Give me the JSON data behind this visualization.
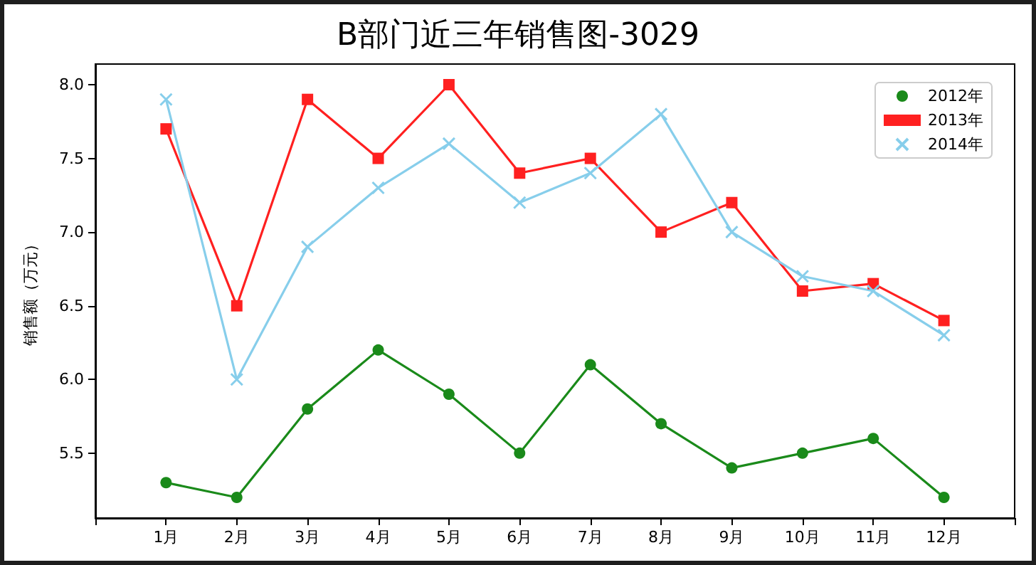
{
  "chart_data": {
    "type": "line",
    "title": "B部门近三年销售图-3029",
    "ylabel": "销售额（万元）",
    "categories": [
      "1月",
      "2月",
      "3月",
      "4月",
      "5月",
      "6月",
      "7月",
      "8月",
      "9月",
      "10月",
      "11月",
      "12月"
    ],
    "series": [
      {
        "name": "2012年",
        "color": "#1a8a1a",
        "marker": "circle",
        "values": [
          5.3,
          5.2,
          5.8,
          6.2,
          5.9,
          5.5,
          6.1,
          5.7,
          5.4,
          5.5,
          5.6,
          5.2
        ]
      },
      {
        "name": "2013年",
        "color": "#ff2020",
        "marker": "square",
        "values": [
          7.7,
          6.5,
          7.9,
          7.5,
          8.0,
          7.4,
          7.5,
          7.0,
          7.2,
          6.6,
          6.65,
          6.4
        ]
      },
      {
        "name": "2014年",
        "color": "#87ceeb",
        "marker": "cross",
        "values": [
          7.9,
          6.0,
          6.9,
          7.3,
          7.6,
          7.2,
          7.4,
          7.8,
          7.0,
          6.7,
          6.6,
          6.3
        ]
      }
    ],
    "ylim": [
      5.06,
      8.14
    ],
    "yticks": [
      {
        "value": 5.5,
        "label": "5.5"
      },
      {
        "value": 6,
        "label": "6.0"
      },
      {
        "value": 6.5,
        "label": "6.5"
      },
      {
        "value": 7,
        "label": "7.0"
      },
      {
        "value": 7.5,
        "label": "7.5"
      },
      {
        "value": 8,
        "label": "8.0"
      }
    ],
    "grid": false,
    "legend": "top right",
    "line_style": "solid"
  }
}
